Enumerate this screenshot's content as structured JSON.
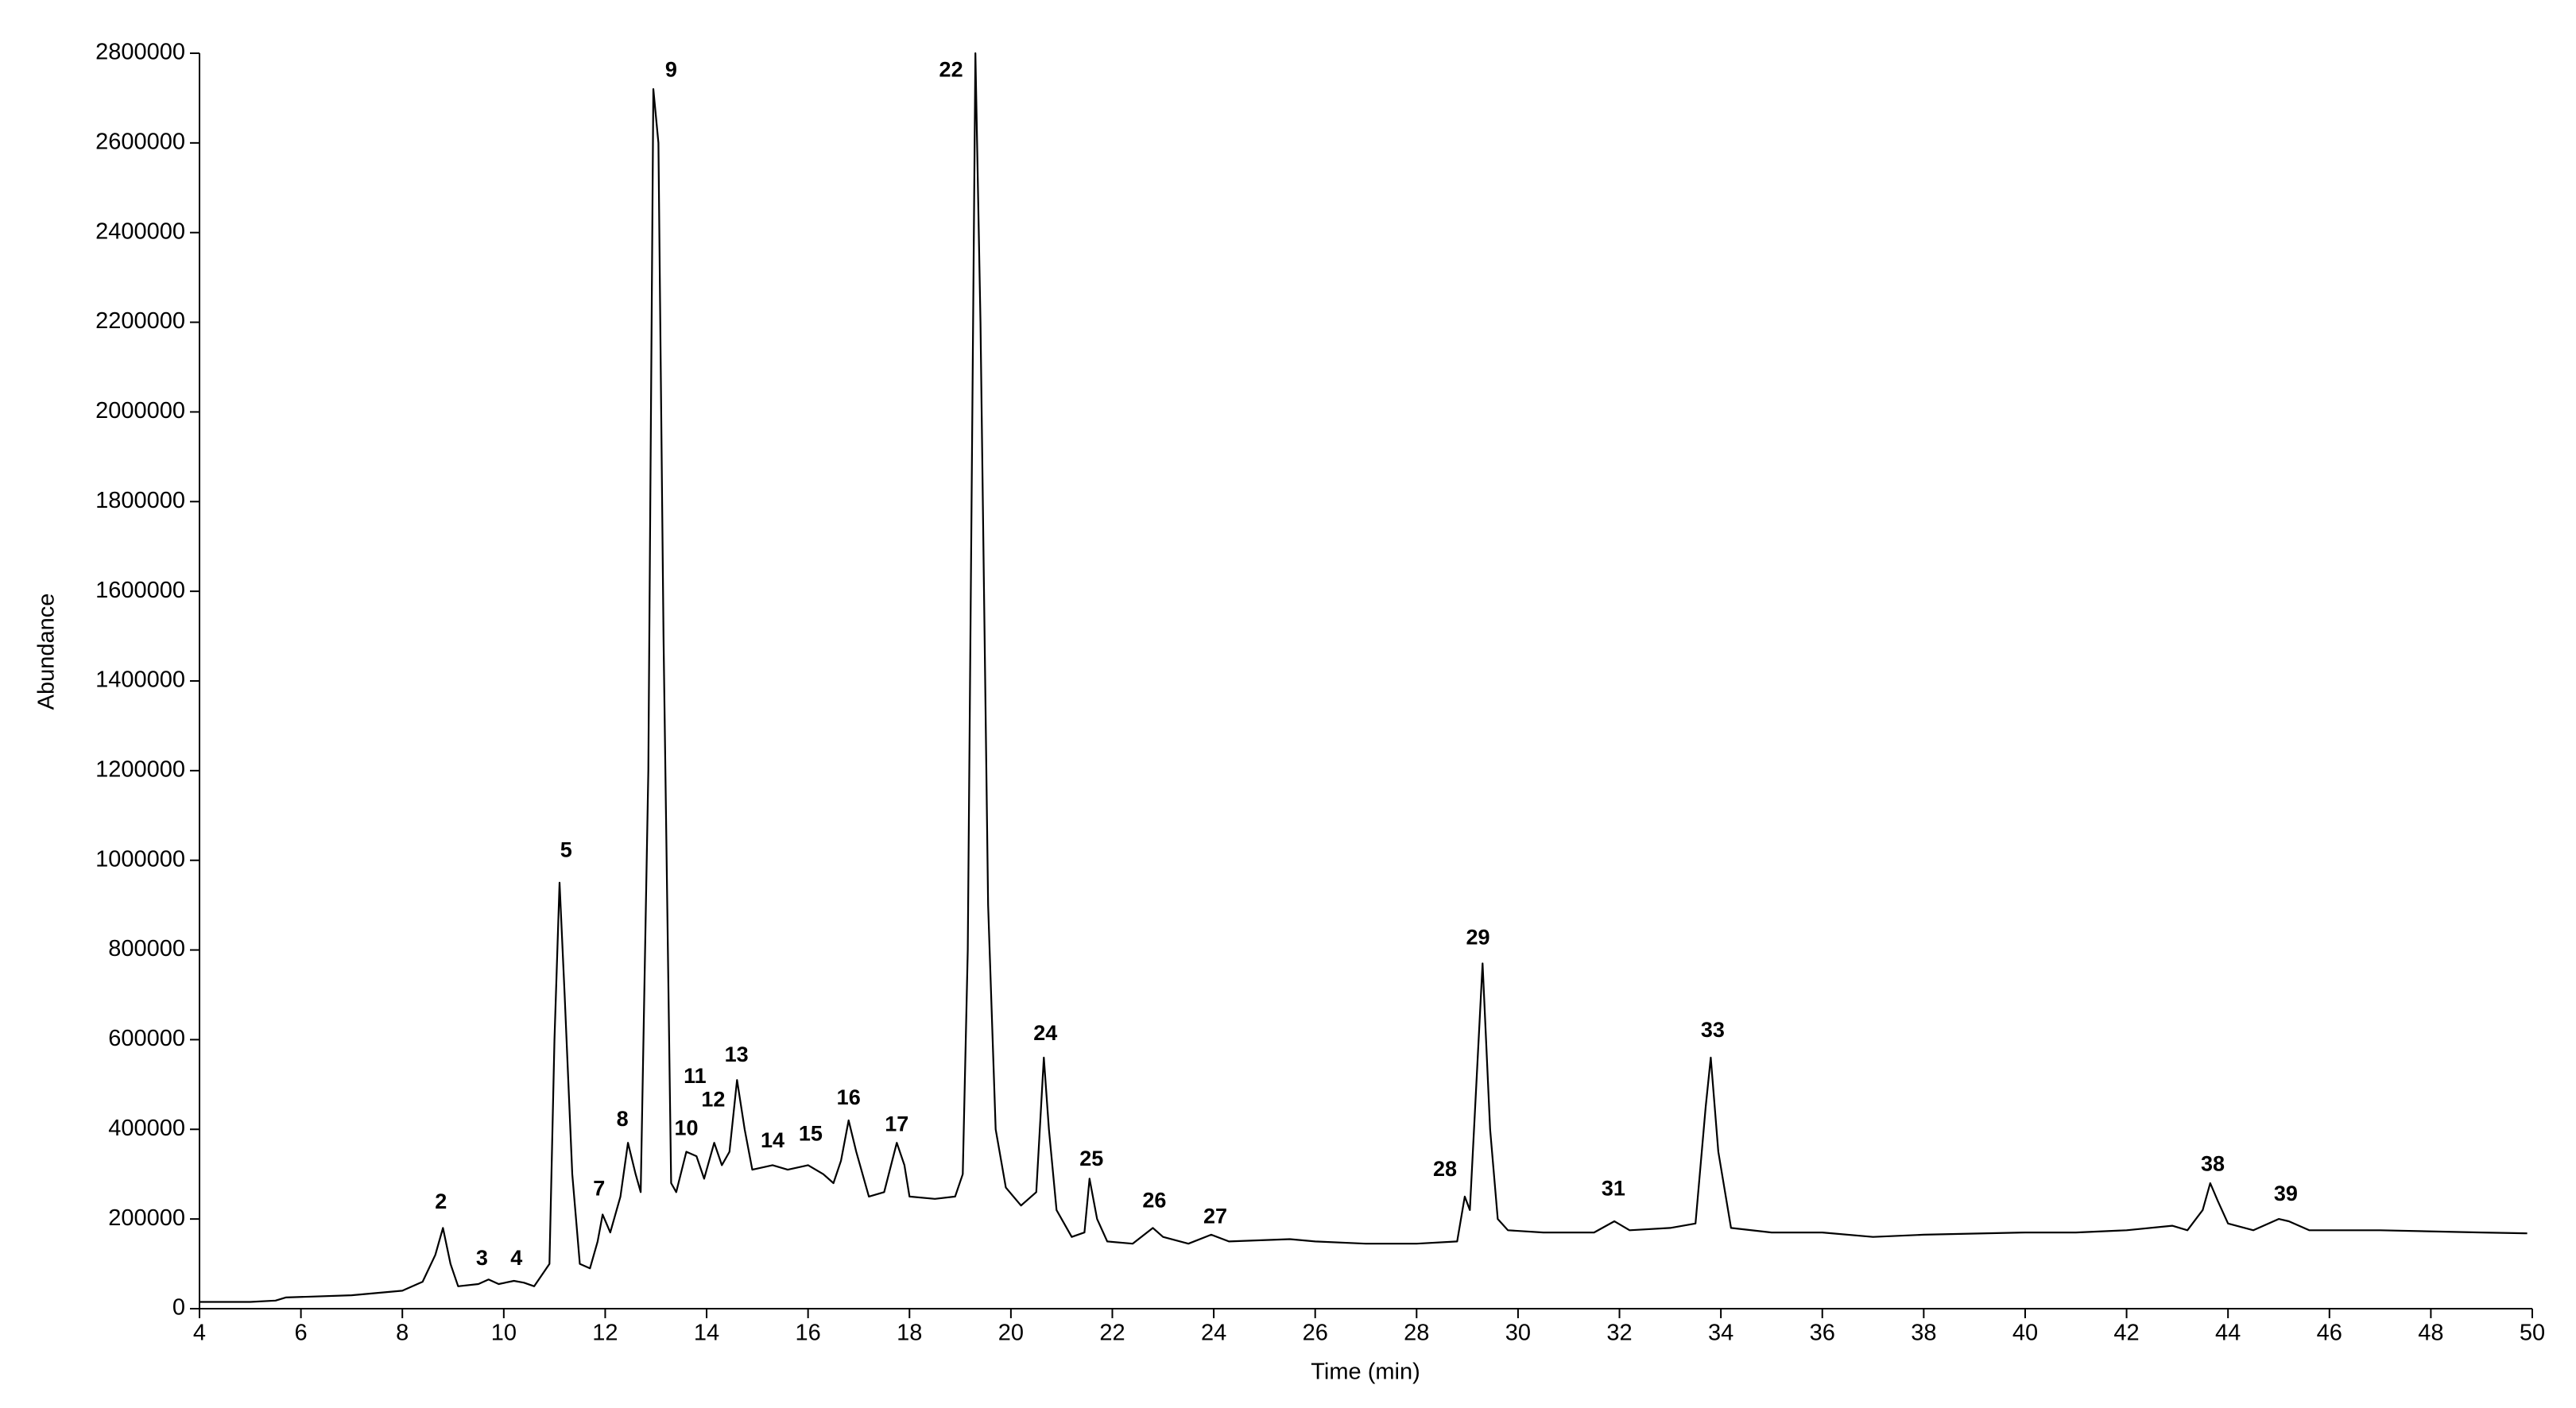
{
  "chart_data": {
    "type": "line",
    "color": "#000000",
    "xlabel": "Time (min)",
    "ylabel": "Abundance",
    "xlim": [
      4,
      50
    ],
    "xticks": [
      4,
      6,
      8,
      10,
      12,
      14,
      16,
      18,
      20,
      22,
      24,
      26,
      28,
      30,
      32,
      34,
      36,
      38,
      40,
      42,
      44,
      46,
      48,
      50
    ],
    "ylim": [
      0,
      2800000
    ],
    "yticks": [
      0,
      200000,
      400000,
      600000,
      800000,
      1000000,
      1200000,
      1400000,
      1600000,
      1800000,
      2000000,
      2200000,
      2400000,
      2600000,
      2800000
    ],
    "x": [
      4.0,
      5.0,
      5.5,
      5.7,
      7.0,
      8.0,
      8.4,
      8.65,
      8.8,
      8.95,
      9.1,
      9.5,
      9.7,
      9.9,
      10.2,
      10.4,
      10.6,
      10.9,
      11.0,
      11.1,
      11.2,
      11.35,
      11.5,
      11.7,
      11.85,
      11.95,
      12.1,
      12.3,
      12.45,
      12.6,
      12.7,
      12.85,
      12.95,
      13.05,
      13.15,
      13.3,
      13.4,
      13.6,
      13.8,
      13.95,
      14.15,
      14.3,
      14.45,
      14.6,
      14.75,
      14.9,
      15.3,
      15.6,
      16.0,
      16.3,
      16.5,
      16.65,
      16.8,
      16.95,
      17.2,
      17.5,
      17.75,
      17.9,
      18.0,
      18.5,
      18.9,
      19.05,
      19.15,
      19.3,
      19.4,
      19.55,
      19.7,
      19.9,
      20.2,
      20.5,
      20.65,
      20.75,
      20.9,
      21.2,
      21.45,
      21.55,
      21.7,
      21.9,
      22.4,
      22.8,
      23.0,
      23.5,
      23.95,
      24.3,
      25.5,
      26,
      27,
      28,
      28.8,
      28.95,
      29.05,
      29.3,
      29.45,
      29.6,
      29.8,
      30.5,
      31.5,
      31.9,
      32.2,
      33,
      33.5,
      33.7,
      33.8,
      33.95,
      34.2,
      35,
      36,
      37,
      38,
      40,
      41,
      42,
      42.9,
      43.2,
      43.5,
      43.65,
      43.8,
      44.0,
      44.5,
      45.0,
      45.2,
      45.6,
      47,
      49,
      49.9
    ],
    "values": [
      15000,
      15000,
      18000,
      25000,
      30000,
      40000,
      60000,
      120000,
      180000,
      100000,
      50000,
      55000,
      65000,
      55000,
      62000,
      58000,
      50000,
      100000,
      600000,
      950000,
      700000,
      300000,
      100000,
      90000,
      150000,
      210000,
      170000,
      250000,
      370000,
      300000,
      260000,
      1200000,
      2720000,
      2600000,
      1500000,
      280000,
      260000,
      350000,
      340000,
      290000,
      370000,
      320000,
      350000,
      510000,
      400000,
      310000,
      320000,
      310000,
      320000,
      300000,
      280000,
      330000,
      420000,
      350000,
      250000,
      260000,
      370000,
      320000,
      250000,
      245000,
      250000,
      300000,
      800000,
      2800000,
      2200000,
      900000,
      400000,
      270000,
      230000,
      260000,
      560000,
      400000,
      220000,
      160000,
      170000,
      290000,
      200000,
      150000,
      145000,
      180000,
      160000,
      145000,
      165000,
      150000,
      155000,
      150000,
      145000,
      145000,
      150000,
      250000,
      220000,
      770000,
      400000,
      200000,
      175000,
      170000,
      170000,
      195000,
      175000,
      180000,
      190000,
      450000,
      560000,
      350000,
      180000,
      170000,
      170000,
      160000,
      165000,
      170000,
      170000,
      175000,
      185000,
      175000,
      220000,
      280000,
      240000,
      190000,
      175000,
      200000,
      195000,
      175000,
      175000,
      170000,
      168000
    ],
    "annotations": [
      {
        "text": "2",
        "x": 8.76,
        "y": 236000
      },
      {
        "text": "3",
        "x": 9.57,
        "y": 110000
      },
      {
        "text": "4",
        "x": 10.25,
        "y": 110000
      },
      {
        "text": "5",
        "x": 11.23,
        "y": 1020000
      },
      {
        "text": "7",
        "x": 11.88,
        "y": 265000
      },
      {
        "text": "8",
        "x": 12.34,
        "y": 420000
      },
      {
        "text": "9",
        "x": 13.3,
        "y": 2760000
      },
      {
        "text": "10",
        "x": 13.6,
        "y": 400000
      },
      {
        "text": "11",
        "x": 13.77,
        "y": 516000
      },
      {
        "text": "12",
        "x": 14.13,
        "y": 464000
      },
      {
        "text": "13",
        "x": 14.59,
        "y": 564000
      },
      {
        "text": "14",
        "x": 15.3,
        "y": 372000
      },
      {
        "text": "15",
        "x": 16.05,
        "y": 387000
      },
      {
        "text": "16",
        "x": 16.8,
        "y": 468000
      },
      {
        "text": "17",
        "x": 17.75,
        "y": 409000
      },
      {
        "text": "22",
        "x": 18.82,
        "y": 2760000
      },
      {
        "text": "24",
        "x": 20.68,
        "y": 612000
      },
      {
        "text": "25",
        "x": 21.59,
        "y": 332000
      },
      {
        "text": "26",
        "x": 22.83,
        "y": 239000
      },
      {
        "text": "27",
        "x": 24.03,
        "y": 203000
      },
      {
        "text": "28",
        "x": 28.56,
        "y": 309000
      },
      {
        "text": "29",
        "x": 29.21,
        "y": 825000
      },
      {
        "text": "31",
        "x": 31.88,
        "y": 265000
      },
      {
        "text": "33",
        "x": 33.84,
        "y": 619000
      },
      {
        "text": "38",
        "x": 43.7,
        "y": 320000
      },
      {
        "text": "39",
        "x": 45.14,
        "y": 254000
      }
    ]
  }
}
